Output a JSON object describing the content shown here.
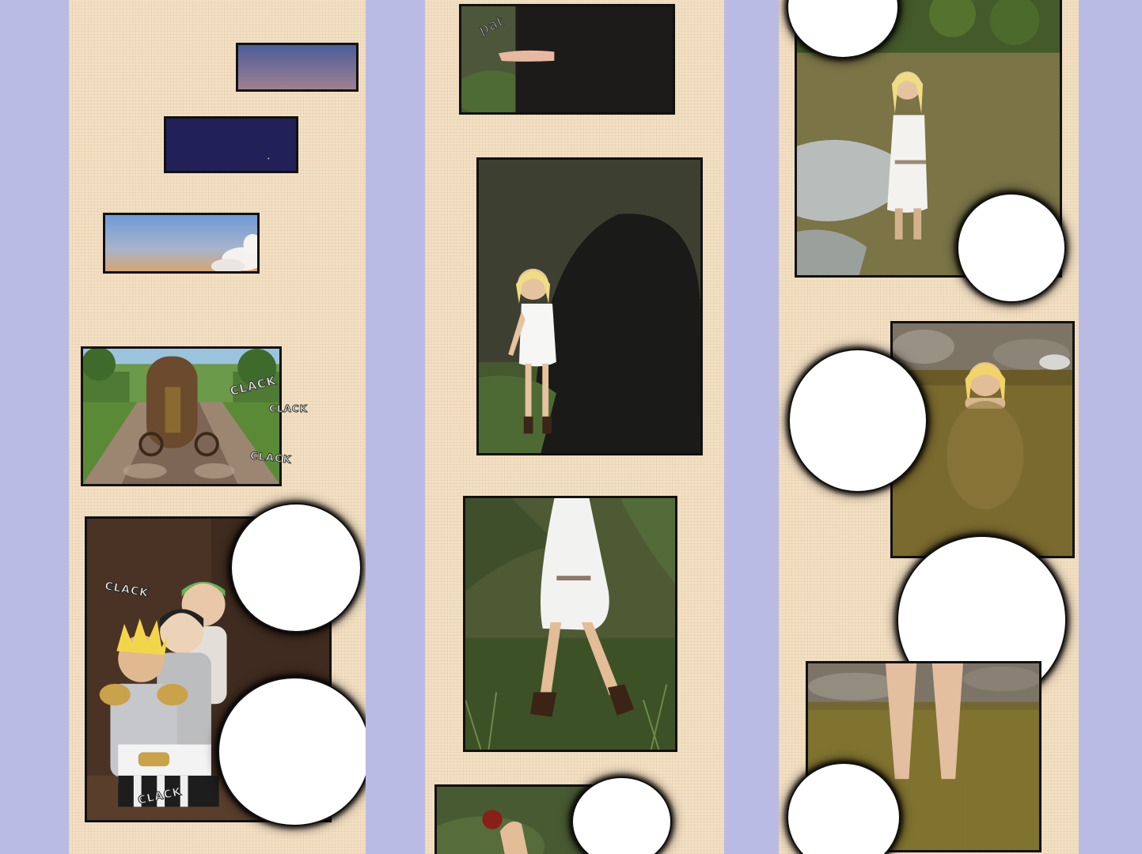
{
  "sfx": {
    "clack_1": "CLACK",
    "clack_2": "CLACK",
    "clack_3": "CLACK",
    "clack_4": "CLACK",
    "clack_5": "CLACK",
    "pat": "pat"
  },
  "colors": {
    "page_background": "#b9bbe4",
    "strip_background": "#f3dfc2",
    "panel_border": "#111111"
  }
}
